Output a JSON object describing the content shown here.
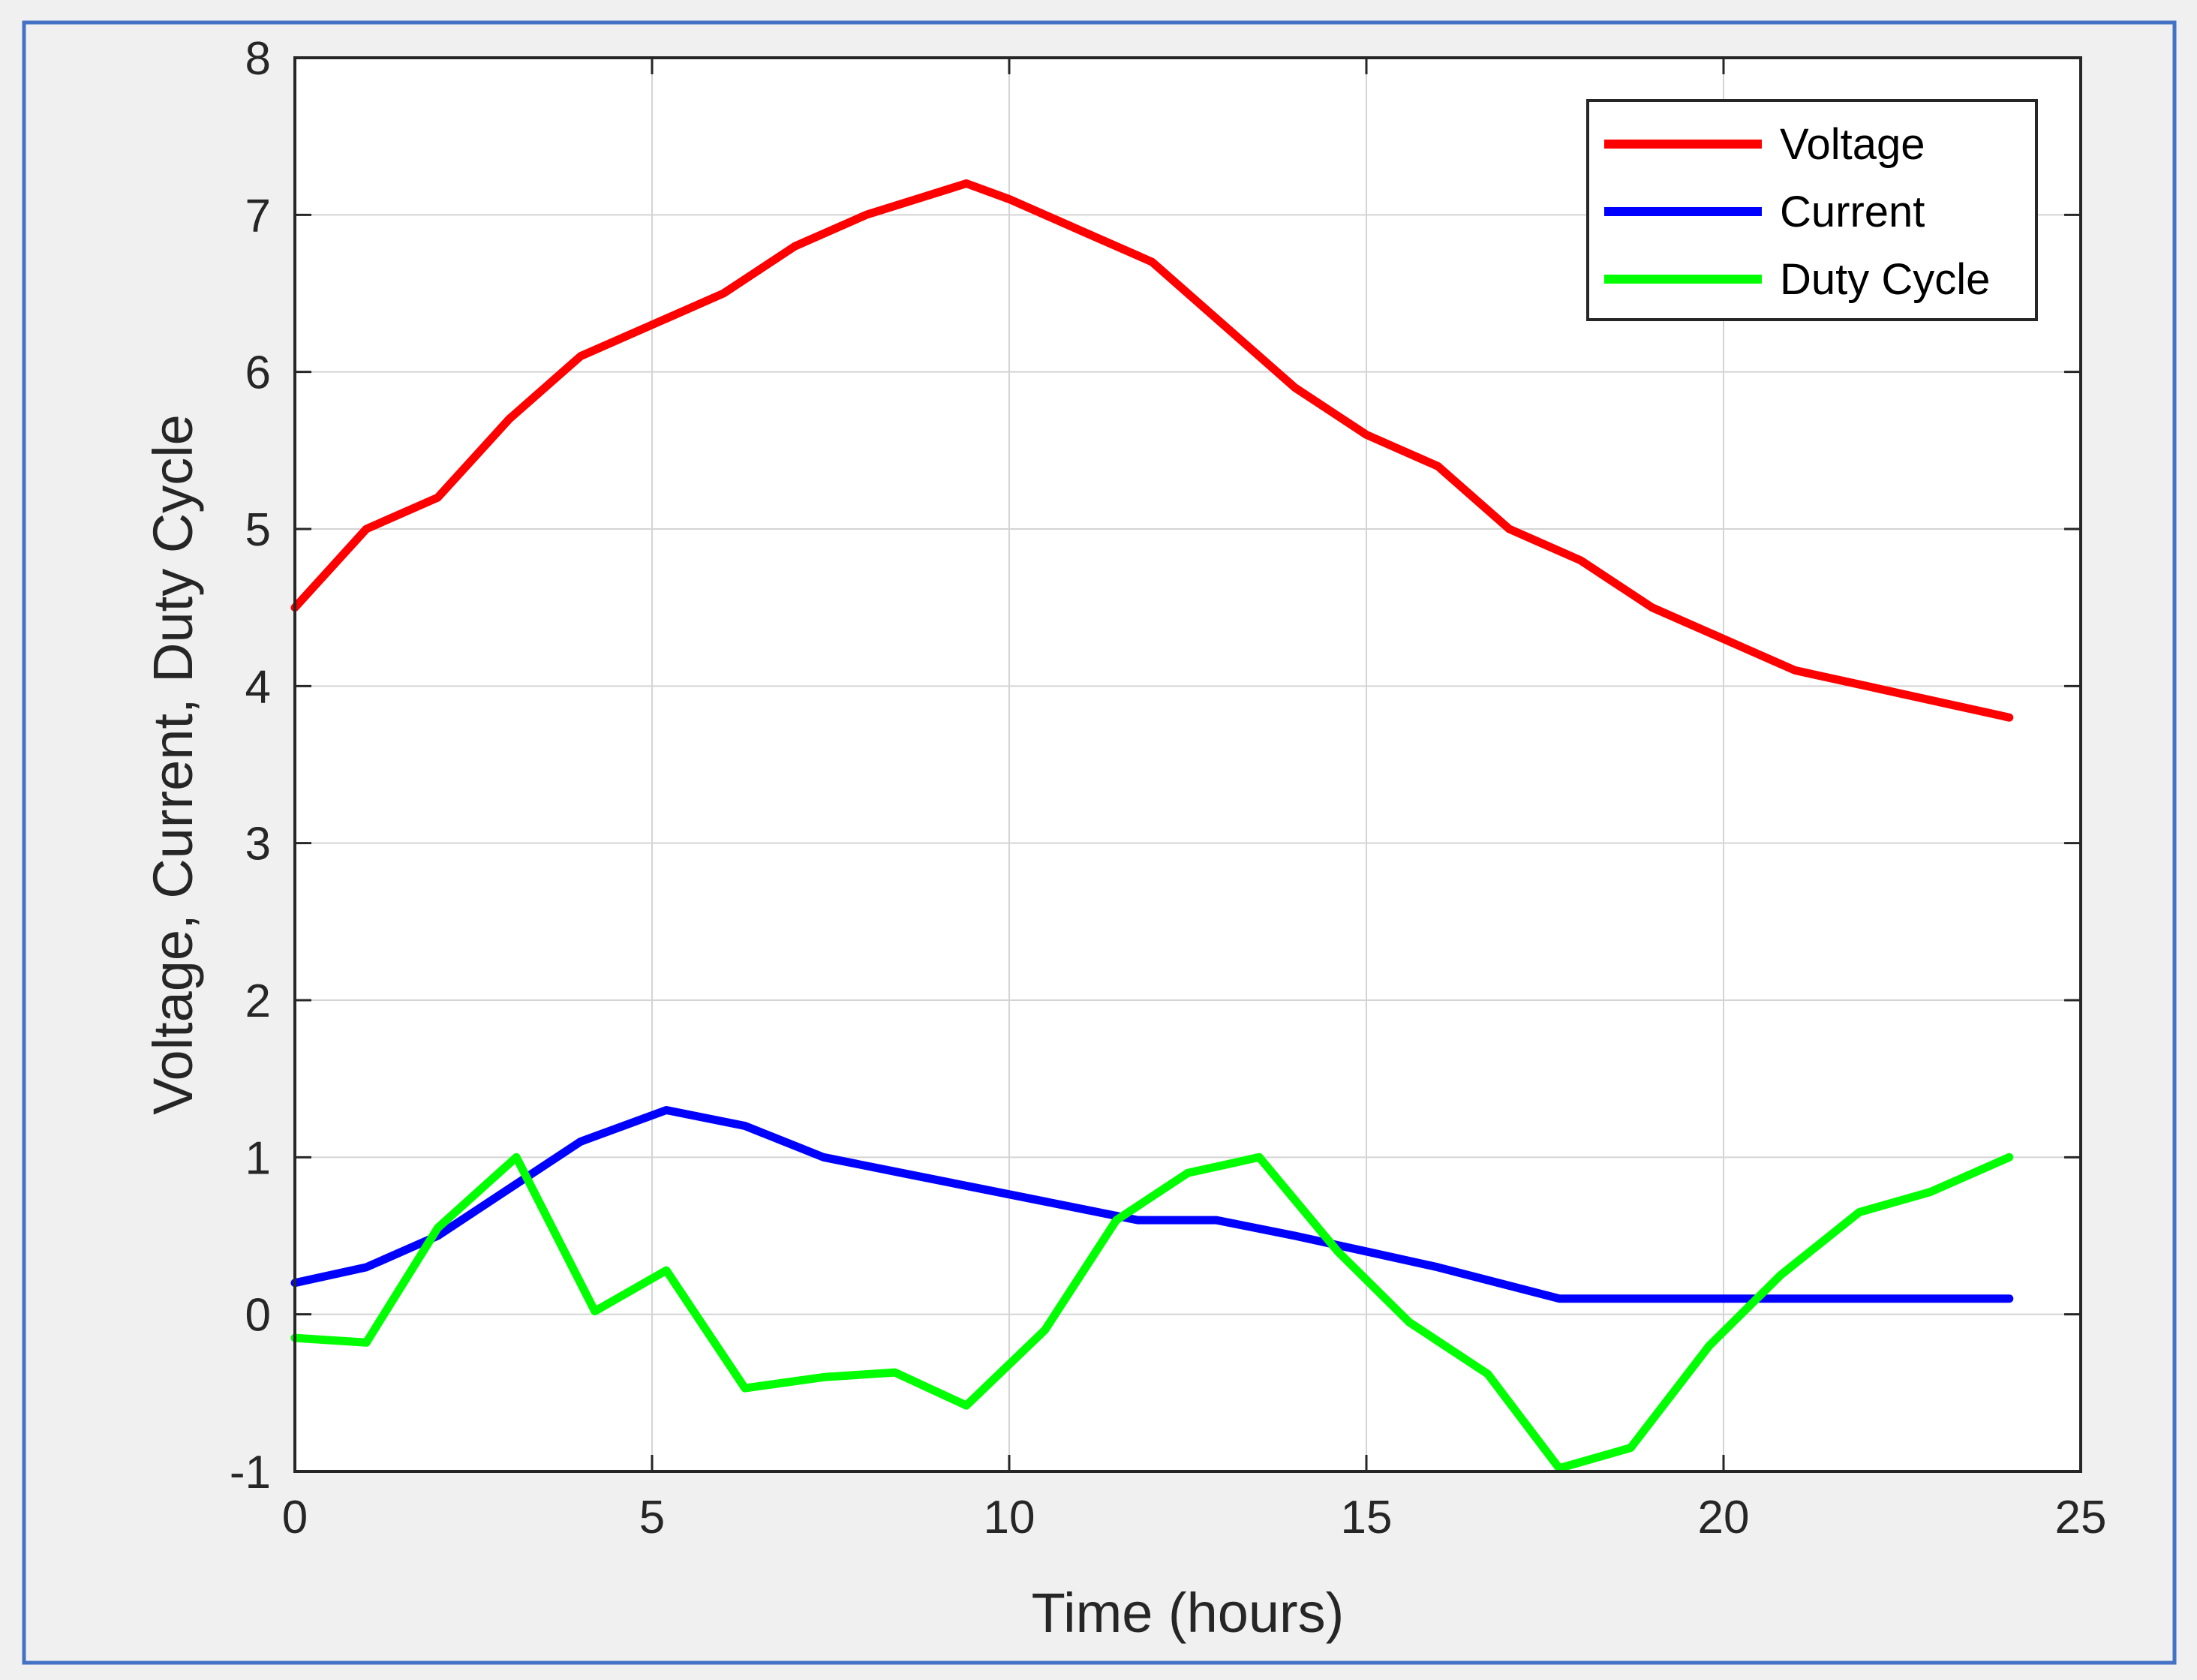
{
  "chart_data": {
    "type": "line",
    "title": "",
    "xlabel": "Time (hours)",
    "ylabel": "Voltage, Current, Duty Cycle",
    "xlim": [
      0,
      25
    ],
    "ylim": [
      -1,
      8
    ],
    "xticks": [
      0,
      5,
      10,
      15,
      20,
      25
    ],
    "yticks": [
      -1,
      0,
      1,
      2,
      3,
      4,
      5,
      6,
      7,
      8
    ],
    "grid": true,
    "legend_position": "top-right",
    "series": [
      {
        "name": "Voltage",
        "color": "#ff0000",
        "x": [
          0,
          1,
          2,
          3,
          4,
          5,
          6,
          7,
          8,
          9.4,
          10,
          11,
          12,
          13,
          14,
          15,
          16,
          17,
          18,
          19,
          20,
          21,
          22,
          23,
          24
        ],
        "y": [
          4.5,
          5.0,
          5.2,
          5.7,
          6.1,
          6.3,
          6.5,
          6.8,
          7.0,
          7.2,
          7.1,
          6.9,
          6.7,
          6.3,
          5.9,
          5.6,
          5.4,
          5.0,
          4.8,
          4.5,
          4.3,
          4.1,
          4.0,
          3.9,
          3.8
        ]
      },
      {
        "name": "Current",
        "color": "#0000ff",
        "x": [
          0,
          1,
          2,
          3,
          4,
          5.2,
          6.3,
          7.4,
          8.5,
          9.6,
          10.7,
          11.8,
          12.9,
          14,
          15,
          16,
          17.7,
          18.8,
          19.9,
          21,
          22,
          24
        ],
        "y": [
          0.2,
          0.3,
          0.5,
          0.8,
          1.1,
          1.3,
          1.2,
          1.0,
          0.9,
          0.8,
          0.7,
          0.6,
          0.6,
          0.5,
          0.4,
          0.3,
          0.1,
          0.1,
          0.1,
          0.1,
          0.1,
          0.1
        ]
      },
      {
        "name": "Duty Cycle",
        "color": "#00ff00",
        "x": [
          0,
          1,
          2,
          3.1,
          4.2,
          5.2,
          6.3,
          7.4,
          8.4,
          9.4,
          10.5,
          11.5,
          12.5,
          13.5,
          14.6,
          15.6,
          16.7,
          17.7,
          18.7,
          19.8,
          20.8,
          21.9,
          22.9,
          24
        ],
        "y": [
          -0.15,
          -0.18,
          0.55,
          1.0,
          0.02,
          0.28,
          -0.47,
          -0.4,
          -0.37,
          -0.58,
          -0.1,
          0.6,
          0.9,
          1.0,
          0.4,
          -0.05,
          -0.38,
          -0.98,
          -0.85,
          -0.2,
          0.25,
          0.65,
          0.78,
          1.0
        ]
      }
    ]
  }
}
